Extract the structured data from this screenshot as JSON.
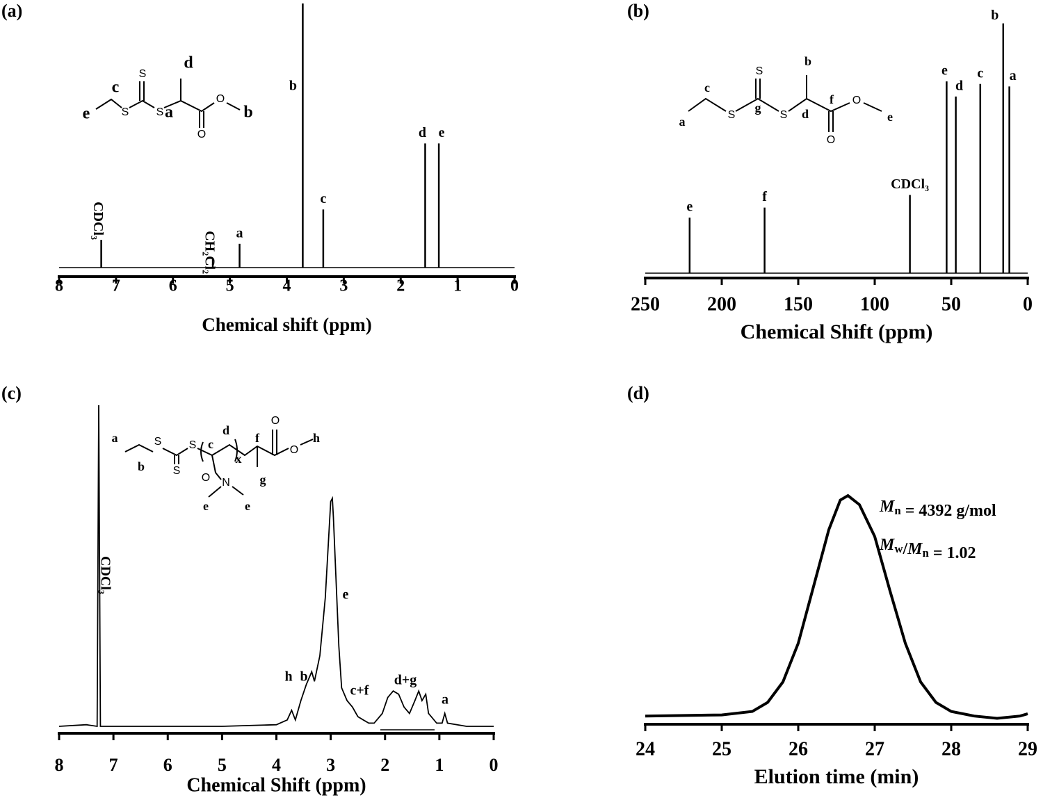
{
  "chart_data": [
    {
      "type": "stem",
      "panel_label": "(a)",
      "xlabel": "Chemical shift (ppm)",
      "color": "#000000",
      "x": [
        7.26,
        5.3,
        4.83,
        3.72,
        3.36,
        1.57,
        1.33
      ],
      "values": [
        10.5,
        3.4,
        9,
        100,
        22,
        47,
        47
      ],
      "peak_labels": [
        "CDCl₃",
        "CH₂Cl₂",
        "a",
        "b",
        "c",
        "d",
        "e"
      ],
      "xlim": [
        8,
        0
      ],
      "xticks": [
        8,
        7,
        6,
        5,
        4,
        3,
        2,
        1,
        0
      ],
      "ylim": [
        0,
        100
      ],
      "structure_labels": [
        "e",
        "c",
        "S",
        "S",
        "S",
        "d",
        "a",
        "O",
        "O",
        "b"
      ]
    },
    {
      "type": "stem",
      "panel_label": "(b)",
      "xlabel": "Chemical Shift (ppm)",
      "color": "#000000",
      "x": [
        221,
        172,
        77,
        53,
        47,
        31,
        16,
        12
      ],
      "values": [
        22,
        26,
        31,
        76,
        70,
        75,
        99,
        74
      ],
      "peak_labels": [
        "e",
        "f",
        "CDCl₃",
        "e",
        "d",
        "c",
        "b",
        "a"
      ],
      "xlim": [
        250,
        0
      ],
      "xticks": [
        250,
        200,
        150,
        100,
        50,
        0
      ],
      "ylim": [
        0,
        100
      ],
      "structure_labels": [
        "a",
        "c",
        "S",
        "S",
        "g",
        "S",
        "b",
        "d",
        "f",
        "O",
        "O",
        "e"
      ]
    },
    {
      "type": "line",
      "panel_label": "(c)",
      "xlabel": "Chemical Shift (ppm)",
      "color": "#000000",
      "x": [
        8,
        7.5,
        7.3,
        7.27,
        7.24,
        7.0,
        5.0,
        4.0,
        3.8,
        3.72,
        3.65,
        3.55,
        3.45,
        3.35,
        3.3,
        3.2,
        3.1,
        3.0,
        2.97,
        2.95,
        2.9,
        2.85,
        2.8,
        2.7,
        2.6,
        2.5,
        2.4,
        2.3,
        2.2,
        2.05,
        1.95,
        1.85,
        1.75,
        1.65,
        1.55,
        1.45,
        1.38,
        1.32,
        1.25,
        1.2,
        1.15,
        1.05,
        0.95,
        0.9,
        0.85,
        0.5,
        0
      ],
      "values": [
        0,
        0.5,
        0,
        100,
        0,
        0,
        0,
        0.5,
        2,
        5,
        2,
        8,
        13,
        17,
        14,
        22,
        40,
        70,
        71,
        65,
        45,
        25,
        12,
        8,
        6,
        3,
        2,
        1,
        1,
        4,
        9,
        11,
        10,
        6,
        4,
        8,
        11,
        8,
        10,
        4,
        3,
        1,
        1,
        4,
        1,
        0,
        0
      ],
      "peak_labels": [
        "CDCl₃",
        "h",
        "b",
        "e",
        "c+f",
        "d+g",
        "a"
      ],
      "xlim": [
        8,
        0
      ],
      "xticks": [
        8,
        7,
        6,
        5,
        4,
        3,
        2,
        1,
        0
      ],
      "ylim": [
        0,
        100
      ],
      "structure_labels": [
        "a",
        "b",
        "S",
        "S",
        "S",
        "c",
        "d",
        "x",
        "f",
        "g",
        "O",
        "O",
        "h",
        "O",
        "N",
        "e",
        "e"
      ]
    },
    {
      "type": "line",
      "panel_label": "(d)",
      "xlabel": "Elution time (min)",
      "color": "#000000",
      "x": [
        24,
        25,
        25.4,
        25.6,
        25.8,
        26,
        26.2,
        26.4,
        26.55,
        26.65,
        26.8,
        27,
        27.2,
        27.4,
        27.6,
        27.8,
        28,
        28.3,
        28.6,
        28.9,
        29
      ],
      "values": [
        3,
        3.5,
        5,
        9,
        18,
        35,
        60,
        85,
        98,
        100,
        96,
        82,
        58,
        35,
        18,
        9,
        5,
        3,
        2,
        3,
        4
      ],
      "xlim": [
        24,
        29
      ],
      "xticks": [
        24,
        25,
        26,
        27,
        28,
        29
      ],
      "ylim": [
        0,
        100
      ],
      "annotations": [
        "Mn = 4392 g/mol",
        "Mw/Mn = 1.02"
      ]
    }
  ]
}
